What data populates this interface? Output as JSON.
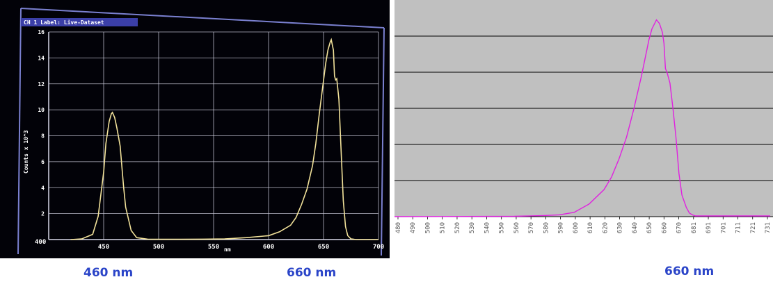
{
  "captions": {
    "left_460": "460 nm",
    "left_660": "660 nm",
    "right_660": "660 nm"
  },
  "colors": {
    "left_trace": "#f2e29a",
    "right_trace": "#e020e0",
    "left_grid": "#d8d8e8",
    "right_plot_bg": "#c0c0c0",
    "caption": "#2a44c8"
  },
  "chart_data": [
    {
      "type": "line",
      "title": "CH 1 Label: Live-Dataset",
      "xlabel": "nm",
      "ylabel": "Counts x 10^3",
      "xlim": [
        400,
        700
      ],
      "ylim": [
        0,
        16
      ],
      "x_ticks": [
        "450",
        "500",
        "550",
        "600",
        "650",
        "700"
      ],
      "y_ticks": [
        "2",
        "4",
        "6",
        "8",
        "10",
        "12",
        "14",
        "16"
      ],
      "origin_label": "400",
      "grid": true,
      "series": [
        {
          "x": [
            420,
            430,
            440,
            445,
            450,
            452,
            455,
            457,
            458,
            460,
            462,
            465,
            468,
            470,
            475,
            480,
            490,
            500,
            520,
            540,
            560,
            580,
            600,
            610,
            620,
            625,
            630,
            635,
            640,
            643,
            646,
            649,
            652,
            654,
            656,
            657,
            659,
            660,
            661,
            662,
            664,
            666,
            668,
            670,
            672,
            675,
            680,
            690,
            700
          ],
          "y": [
            0,
            0.05,
            0.4,
            1.8,
            5.2,
            7.4,
            9.1,
            9.7,
            9.8,
            9.4,
            8.6,
            7.2,
            4.2,
            2.5,
            0.7,
            0.15,
            0.03,
            0.02,
            0.02,
            0.03,
            0.05,
            0.15,
            0.3,
            0.6,
            1.1,
            1.7,
            2.7,
            3.9,
            5.7,
            7.4,
            9.6,
            11.6,
            13.6,
            14.6,
            15.2,
            15.4,
            14.6,
            12.6,
            12.3,
            12.4,
            10.8,
            6.8,
            3.0,
            1.0,
            0.3,
            0.05,
            0,
            0,
            0
          ]
        }
      ]
    },
    {
      "type": "line",
      "x_ticks": [
        "480",
        "490",
        "500",
        "510",
        "520",
        "530",
        "540",
        "550",
        "560",
        "570",
        "580",
        "590",
        "600",
        "610",
        "620",
        "630",
        "640",
        "650",
        "660",
        "670",
        "681",
        "691",
        "701",
        "711",
        "721",
        "731"
      ],
      "xlim": [
        480,
        731
      ],
      "ylim": [
        0,
        6
      ],
      "grid": true,
      "series": [
        {
          "x": [
            480,
            560,
            580,
            590,
            600,
            610,
            620,
            625,
            630,
            635,
            640,
            645,
            650,
            652,
            655,
            657,
            659,
            660,
            661,
            662,
            664,
            666,
            668,
            670,
            672,
            675,
            677,
            679,
            681,
            683,
            686,
            690,
            700,
            731
          ],
          "y": [
            0,
            0.01,
            0.03,
            0.05,
            0.12,
            0.35,
            0.75,
            1.1,
            1.6,
            2.2,
            3.0,
            3.9,
            4.9,
            5.2,
            5.45,
            5.35,
            5.1,
            4.8,
            4.1,
            4.0,
            3.7,
            3.0,
            2.2,
            1.2,
            0.6,
            0.25,
            0.1,
            0.05,
            0.02,
            0.02,
            0.02,
            0.02,
            0.02,
            0.02
          ]
        }
      ]
    }
  ]
}
